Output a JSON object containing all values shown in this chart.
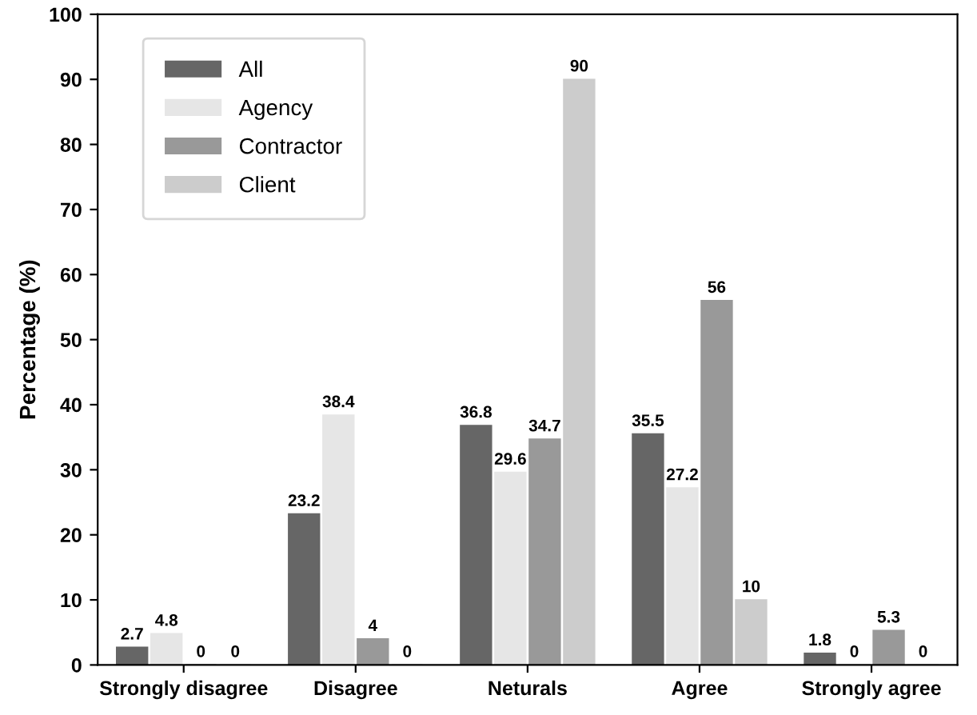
{
  "chart_data": {
    "type": "bar",
    "ylabel": "Percentage (%)",
    "categories": [
      "Strongly disagree",
      "Disagree",
      "Neturals",
      "Agree",
      "Strongly agree"
    ],
    "series": [
      {
        "name": "All",
        "color": "#666666",
        "values": [
          2.7,
          23.2,
          36.8,
          35.5,
          1.8
        ]
      },
      {
        "name": "Agency",
        "color": "#e6e6e6",
        "values": [
          4.8,
          38.4,
          29.6,
          27.2,
          0
        ]
      },
      {
        "name": "Contractor",
        "color": "#999999",
        "values": [
          0,
          4,
          34.7,
          56,
          5.3
        ]
      },
      {
        "name": "Client",
        "color": "#cccccc",
        "values": [
          0,
          0,
          90,
          10,
          0
        ]
      }
    ],
    "ylim": [
      0,
      100
    ],
    "yticks": [
      0,
      10,
      20,
      30,
      40,
      50,
      60,
      70,
      80,
      90,
      100
    ],
    "data_labels": true,
    "legend": "top left",
    "grid": false
  }
}
